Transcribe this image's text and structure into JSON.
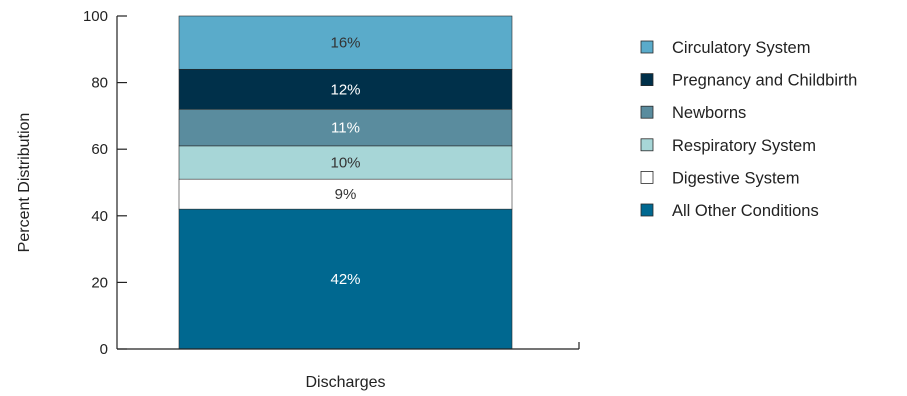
{
  "chart_data": {
    "type": "bar",
    "stacked": true,
    "categories": [
      "Discharges"
    ],
    "xlabel": "Discharges",
    "ylabel": "Percent Distribution",
    "ylim": [
      0,
      100
    ],
    "yticks": [
      0,
      20,
      40,
      60,
      80,
      100
    ],
    "grid": false,
    "legend_position": "right",
    "series": [
      {
        "name": "All Other Conditions",
        "values": [
          42
        ],
        "label": "42%",
        "color": "#006890",
        "label_color": "#ffffff"
      },
      {
        "name": "Digestive System",
        "values": [
          9
        ],
        "label": "9%",
        "color": "#ffffff",
        "label_color": "#333333"
      },
      {
        "name": "Respiratory System",
        "values": [
          10
        ],
        "label": "10%",
        "color": "#a7d6d7",
        "label_color": "#333333"
      },
      {
        "name": "Newborns",
        "values": [
          11
        ],
        "label": "11%",
        "color": "#5a8c9e",
        "label_color": "#ffffff"
      },
      {
        "name": "Pregnancy and Childbirth",
        "values": [
          12
        ],
        "label": "12%",
        "color": "#00304a",
        "label_color": "#ffffff"
      },
      {
        "name": "Circulatory System",
        "values": [
          16
        ],
        "label": "16%",
        "color": "#5aabca",
        "label_color": "#333333"
      }
    ],
    "legend_order": [
      "Circulatory System",
      "Pregnancy and Childbirth",
      "Newborns",
      "Respiratory System",
      "Digestive System",
      "All Other Conditions"
    ]
  }
}
